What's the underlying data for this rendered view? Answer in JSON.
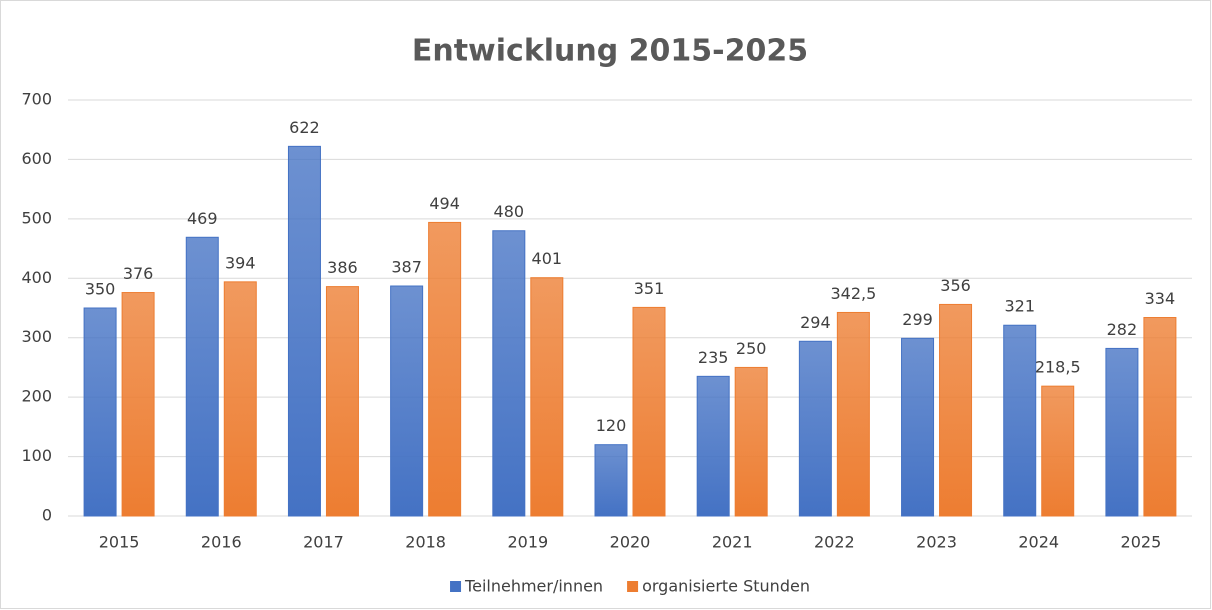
{
  "chart_data": {
    "type": "bar",
    "title": "Entwicklung 2015-2025",
    "categories": [
      "2015",
      "2016",
      "2017",
      "2018",
      "2019",
      "2020",
      "2021",
      "2022",
      "2023",
      "2024",
      "2025"
    ],
    "series": [
      {
        "name": "Teilnehmer/innen",
        "color": "#4472c4",
        "values": [
          350,
          469,
          622,
          387,
          480,
          120,
          235,
          294,
          299,
          321,
          282
        ]
      },
      {
        "name": "organisierte Stunden",
        "color": "#ed7d31",
        "values": [
          376,
          394,
          386,
          494,
          401,
          351,
          250,
          342.5,
          356,
          218.5,
          334
        ],
        "value_labels": [
          "376",
          "394",
          "386",
          "494",
          "401",
          "351",
          "250",
          "342,5",
          "356",
          "218,5",
          "334"
        ]
      }
    ],
    "ylim": [
      0,
      700
    ],
    "yticks": [
      0,
      100,
      200,
      300,
      400,
      500,
      600,
      700
    ],
    "grid": true,
    "legend": "bottom"
  }
}
